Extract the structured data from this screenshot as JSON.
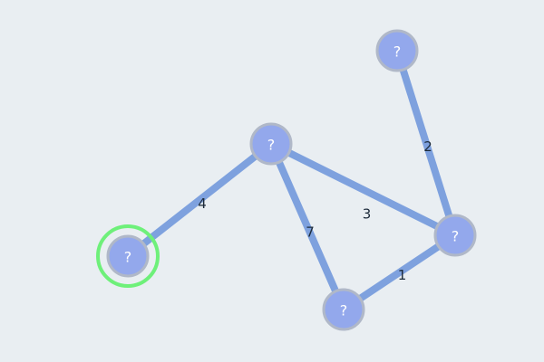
{
  "colors": {
    "background": "#e9eef2",
    "edge": "#7ea1de",
    "node_fill": "#93a8ec",
    "node_stroke": "#b0b8c8",
    "selected_ring": "#6ef07a",
    "label_text": "#1c2a3a",
    "node_text": "#ffffff"
  },
  "graph": {
    "nodes": [
      {
        "id": "n1",
        "label": "?",
        "selected": true
      },
      {
        "id": "n2",
        "label": "?",
        "selected": false
      },
      {
        "id": "n3",
        "label": "?",
        "selected": false
      },
      {
        "id": "n4",
        "label": "?",
        "selected": false
      },
      {
        "id": "n5",
        "label": "?",
        "selected": false
      }
    ],
    "edges": [
      {
        "from": "n1",
        "to": "n2",
        "weight": "4"
      },
      {
        "from": "n2",
        "to": "n5",
        "weight": "3"
      },
      {
        "from": "n2",
        "to": "n3",
        "weight": "7"
      },
      {
        "from": "n3",
        "to": "n5",
        "weight": "1"
      },
      {
        "from": "n4",
        "to": "n5",
        "weight": "2"
      }
    ]
  }
}
